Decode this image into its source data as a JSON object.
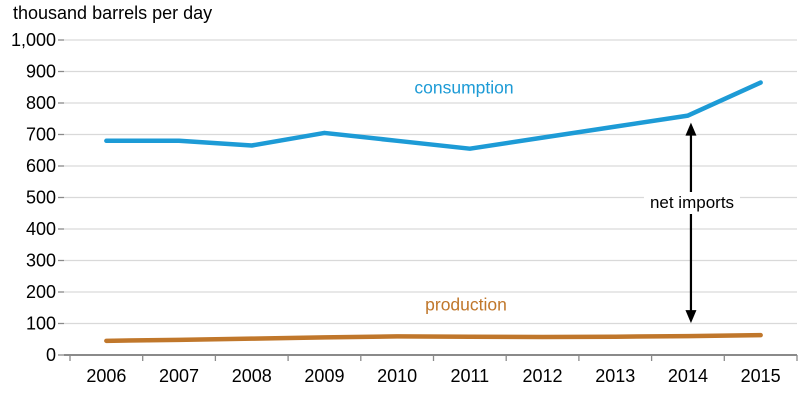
{
  "chart_data": {
    "type": "line",
    "title": "thousand barrels per day",
    "xlabel": "",
    "ylabel": "thousand barrels per day",
    "categories": [
      "2006",
      "2007",
      "2008",
      "2009",
      "2010",
      "2011",
      "2012",
      "2013",
      "2014",
      "2015"
    ],
    "series": [
      {
        "key": "consumption",
        "name": "consumption",
        "color": "#1d9bd6",
        "values": [
          680,
          680,
          665,
          705,
          680,
          655,
          690,
          725,
          760,
          865
        ]
      },
      {
        "key": "production",
        "name": "production",
        "color": "#c0772b",
        "values": [
          45,
          48,
          52,
          56,
          59,
          58,
          57,
          58,
          60,
          63
        ]
      }
    ],
    "ylim": [
      0,
      1000
    ],
    "y_ticks": [
      {
        "value": 0,
        "label": "0"
      },
      {
        "value": 100,
        "label": "100"
      },
      {
        "value": 200,
        "label": "200"
      },
      {
        "value": 300,
        "label": "300"
      },
      {
        "value": 400,
        "label": "400"
      },
      {
        "value": 500,
        "label": "500"
      },
      {
        "value": 600,
        "label": "600"
      },
      {
        "value": 700,
        "label": "700"
      },
      {
        "value": 800,
        "label": "800"
      },
      {
        "value": 900,
        "label": "900"
      },
      {
        "value": 1000,
        "label": "1,000"
      }
    ],
    "annotation": {
      "label": "net imports",
      "x_category": "2014",
      "x_index": 8,
      "from_series": "consumption",
      "to_series": "production",
      "arrow": "double-headed-vertical"
    },
    "legend_position": "inline-labels",
    "grid": "horizontal",
    "colors": {
      "gridline": "#d9d9d9",
      "axis": "#8a8a8a",
      "text": "#000000",
      "background": "#ffffff",
      "annotation_arrow": "#000000"
    }
  }
}
